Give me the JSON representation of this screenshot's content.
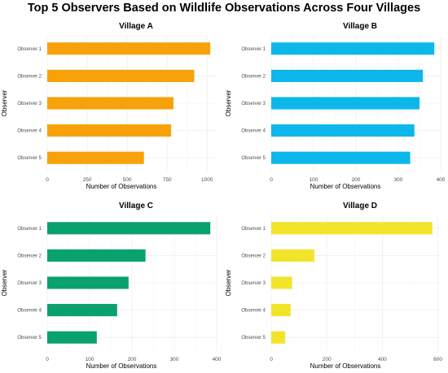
{
  "title": "Top 5 Observers Based on Wildlife Observations Across Four Villages",
  "chart_data": [
    {
      "type": "bar",
      "orientation": "horizontal",
      "title": "Village A",
      "categories": [
        "Observer 1",
        "Observer 2",
        "Observer 3",
        "Observer 4",
        "Observer 5"
      ],
      "values": [
        1020,
        920,
        790,
        775,
        605
      ],
      "xlabel": "Number of Observations",
      "ylabel": "Observer",
      "xlim": [
        0,
        1060
      ],
      "xticks": [
        0,
        250,
        500,
        750,
        1000
      ],
      "color": "#F7A20A",
      "grid": true
    },
    {
      "type": "bar",
      "orientation": "horizontal",
      "title": "Village B",
      "categories": [
        "Observer 1",
        "Observer 2",
        "Observer 3",
        "Observer 4",
        "Observer 5"
      ],
      "values": [
        385,
        358,
        350,
        338,
        328
      ],
      "xlabel": "Number of Observations",
      "ylabel": "Observer",
      "xlim": [
        0,
        400
      ],
      "xticks": [
        0,
        100,
        200,
        300,
        400
      ],
      "color": "#0DB7EA",
      "grid": true
    },
    {
      "type": "bar",
      "orientation": "horizontal",
      "title": "Village C",
      "categories": [
        "Observer 1",
        "Observer 2",
        "Observer 3",
        "Observer 4",
        "Observer 5"
      ],
      "values": [
        385,
        232,
        192,
        165,
        117
      ],
      "xlabel": "Number of Observations",
      "ylabel": "Observer",
      "xlim": [
        0,
        400
      ],
      "xticks": [
        0,
        100,
        200,
        300,
        400
      ],
      "color": "#0AA06F",
      "grid": true
    },
    {
      "type": "bar",
      "orientation": "horizontal",
      "title": "Village D",
      "categories": [
        "Observer 1",
        "Observer 2",
        "Observer 3",
        "Observer 4",
        "Observer 5"
      ],
      "values": [
        580,
        155,
        75,
        70,
        50
      ],
      "xlabel": "Number of Observations",
      "ylabel": "Observer",
      "xlim": [
        0,
        610
      ],
      "xticks": [
        0,
        200,
        400,
        600
      ],
      "color": "#F2E42A",
      "grid": true
    }
  ]
}
